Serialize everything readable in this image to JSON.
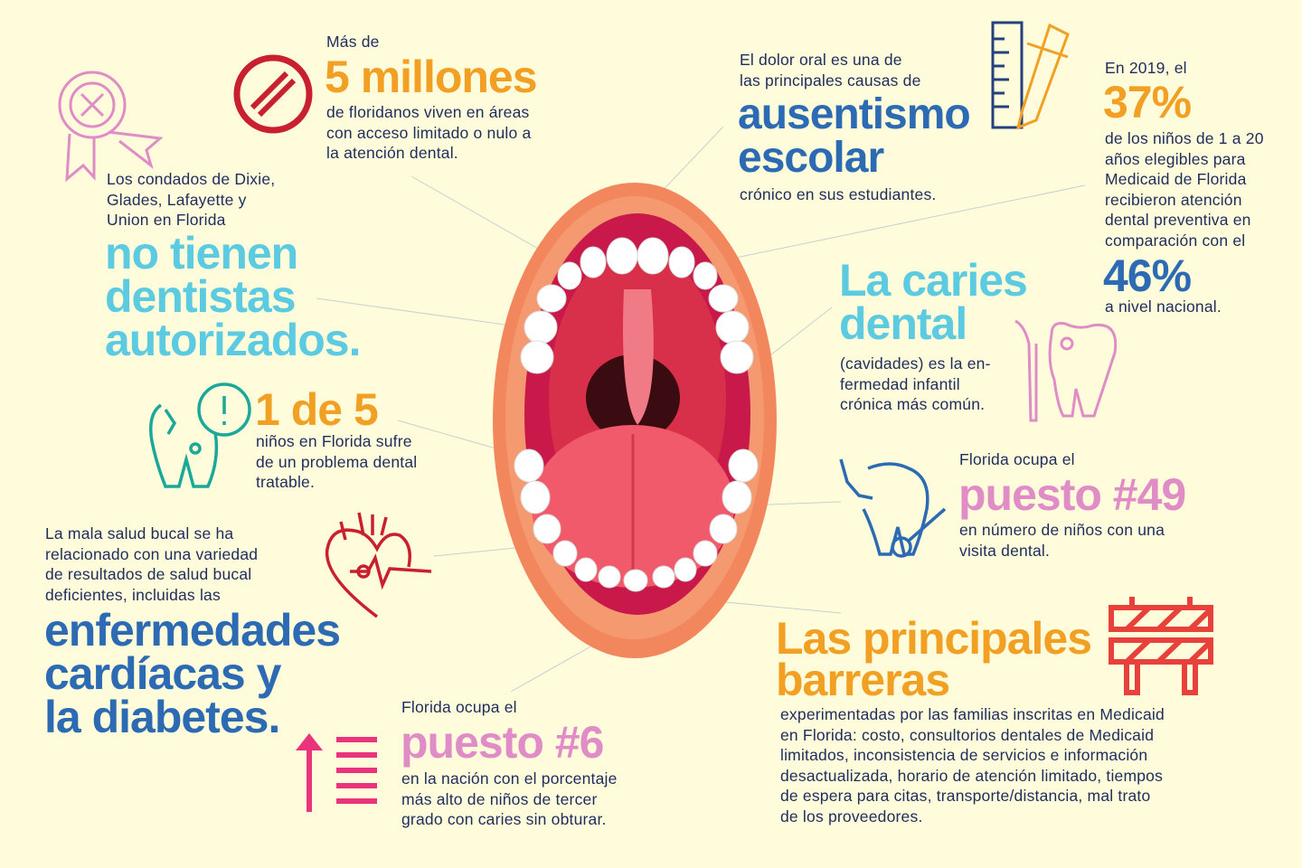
{
  "colors": {
    "background": "#fefcdb",
    "text": "#1f2d5c",
    "orange": "#f2a024",
    "cyan": "#5ccbe2",
    "blue": "#2c6bb3",
    "pink": "#e08cc6",
    "red": "#c8202f"
  },
  "facts": {
    "millones": {
      "pre": "Más de",
      "headline": "5 millones",
      "body": [
        "de floridanos viven en áreas",
        "con acceso limitado o nulo a",
        "la atención dental."
      ],
      "icon": "prohibited-icon"
    },
    "condados": {
      "pre": [
        "Los condados de Dixie,",
        "Glades, Lafayette y",
        "Union en Florida"
      ],
      "headline": [
        "no tienen",
        "dentistas",
        "autorizados."
      ],
      "icon": "award-ribbon-x-icon"
    },
    "uno_de_cinco": {
      "headline": "1 de 5",
      "body": [
        "niños en Florida sufre",
        "de un problema dental",
        "tratable."
      ],
      "icon": "damaged-tooth-alert-icon"
    },
    "cardiacas": {
      "pre": [
        "La mala salud bucal se ha",
        "relacionado con una variedad",
        "de resultados de salud bucal",
        "deficientes, incluidas las"
      ],
      "headline": [
        "enfermedades",
        "cardíacas y",
        "la diabetes."
      ],
      "icon": "heart-pulse-icon"
    },
    "puesto6": {
      "pre": "Florida ocupa el",
      "headline": "puesto #6",
      "body": [
        "en la nación con el porcentaje",
        "más alto de niños de tercer",
        "grado con caries sin obturar."
      ],
      "icon": "ranking-up-icon"
    },
    "ausentismo": {
      "pre": [
        "El dolor oral es una de",
        "las principales causas de"
      ],
      "headline": [
        "ausentismo",
        "escolar"
      ],
      "body": "crónico en sus estudiantes.",
      "icon": "ruler-pencil-icon"
    },
    "medicaid": {
      "pre": "En 2019, el",
      "headline": "37%",
      "body": [
        "de los niños de 1 a 20",
        "años elegibles para",
        "Medicaid de Florida",
        "recibieron atención",
        "dental preventiva en",
        "comparación con el"
      ],
      "headline2": "46%",
      "post": "a nivel nacional."
    },
    "caries": {
      "headline": [
        "La caries",
        "dental"
      ],
      "body": [
        "(cavidades) es la en-",
        "fermedad infantil",
        "crónica más común."
      ],
      "icon": "tooth-dental-tool-icon"
    },
    "puesto49": {
      "pre": "Florida ocupa el",
      "headline": "puesto #49",
      "body": [
        "en número de niños con una",
        "visita dental."
      ],
      "icon": "tooth-dental-mirror-icon"
    },
    "barreras": {
      "headline": [
        "Las principales",
        "barreras"
      ],
      "body": [
        "experimentadas por las familias inscritas en Medicaid",
        "en Florida: costo, consultorios dentales de Medicaid",
        "limitados, inconsistencia de servicios e información",
        "desactualizada, horario de atención limitado, tiempos",
        "de espera para citas, transporte/distancia, mal trato",
        "de los proveedores."
      ],
      "icon": "road-barrier-icon"
    }
  }
}
